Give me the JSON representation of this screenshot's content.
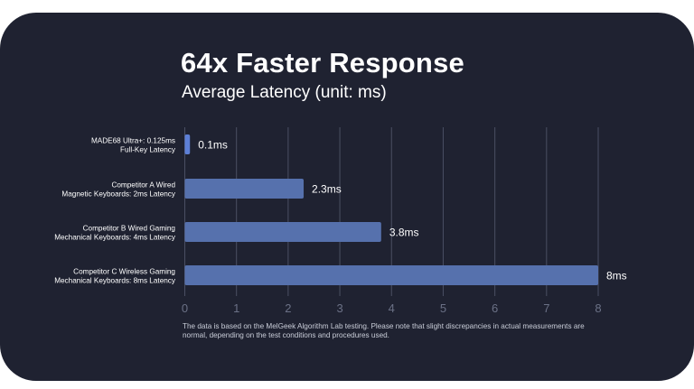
{
  "chart_data": {
    "type": "bar",
    "orientation": "horizontal",
    "title": "64x Faster Response",
    "subtitle": "Average Latency (unit: ms)",
    "categories": [
      [
        "MADE68 Ultra+: 0.125ms",
        "Full-Key Latency"
      ],
      [
        "Competitor A Wired",
        "Magnetic Keyboards: 2ms Latency"
      ],
      [
        "Competitor B Wired Gaming",
        "Mechanical Keyboards: 4ms Latency"
      ],
      [
        "Competitor C Wireless Gaming",
        "Mechanical Keyboards: 8ms Latency"
      ]
    ],
    "values": [
      0.1,
      2.3,
      3.8,
      8
    ],
    "data_labels": [
      "0.1ms",
      "2.3ms",
      "3.8ms",
      "8ms"
    ],
    "xlim": [
      0,
      8
    ],
    "xticks": [
      0,
      1,
      2,
      3,
      4,
      5,
      6,
      7,
      8
    ],
    "grid": true,
    "legend": "none",
    "xlabel": "",
    "ylabel": ""
  },
  "colors": {
    "background": "#1f2231",
    "bar": "#5671ad",
    "bar_highlight": "#5d7fd6",
    "grid": "#4a4f63",
    "tick_text": "#6b7186",
    "text": "#ffffff"
  },
  "footnote": "The data is based on the MelGeek Algorithm Lab testing. Please note that slight discrepancies in actual measurements are normal, depending on the test conditions and procedures used."
}
